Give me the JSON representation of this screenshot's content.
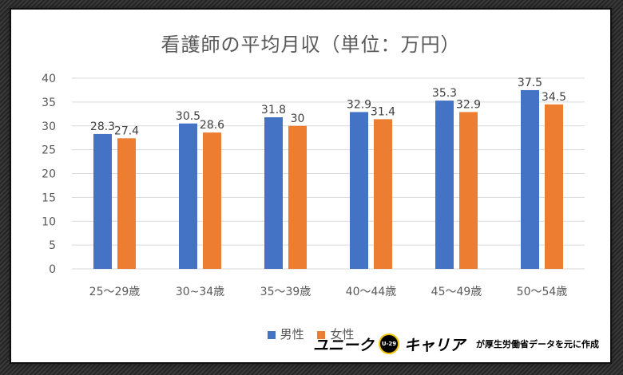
{
  "colors": {
    "male": "#4472C4",
    "female": "#ED7D31",
    "grid": "#D9D9D9",
    "axis_text": "#595959"
  },
  "footer": {
    "brand_left": "ユニーク",
    "brand_right": "キャリア",
    "badge": "U-29",
    "note": "が厚生労働省データを元に作成"
  },
  "chart_data": {
    "type": "bar",
    "title": "看護師の平均月収（単位：万円）",
    "categories": [
      "25～29歳",
      "30~34歳",
      "35～39歳",
      "40～44歳",
      "45～49歳",
      "50～54歳"
    ],
    "series": [
      {
        "name": "男性",
        "color": "#4472C4",
        "values": [
          28.3,
          30.5,
          31.8,
          32.9,
          35.3,
          37.5
        ],
        "labels": [
          "28.3",
          "30.5",
          "31.8",
          "32.9",
          "35.3",
          "37.5"
        ]
      },
      {
        "name": "女性",
        "color": "#ED7D31",
        "values": [
          27.4,
          28.6,
          30,
          31.4,
          32.9,
          34.5
        ],
        "labels": [
          "27.4",
          "28.6",
          "30",
          "31.4",
          "32.9",
          "34.5"
        ]
      }
    ],
    "ylim": [
      0,
      40
    ],
    "yticks": [
      "0",
      "5",
      "10",
      "15",
      "20",
      "25",
      "30",
      "35",
      "40"
    ],
    "xlabel": "",
    "ylabel": "",
    "grid": true,
    "legend_position": "bottom"
  }
}
